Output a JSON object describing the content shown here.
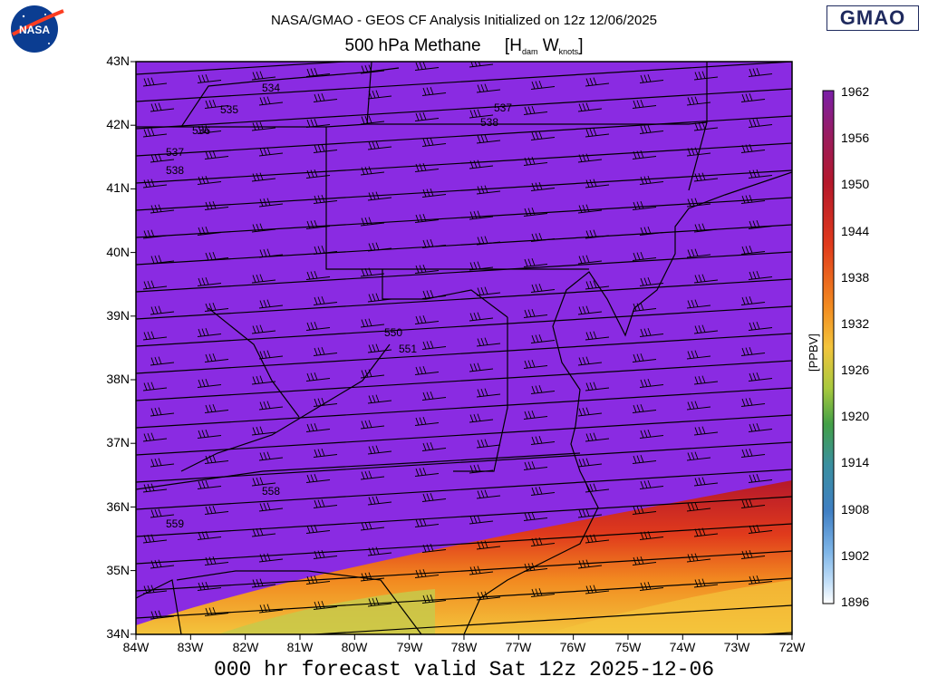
{
  "header": {
    "title_line1": "NASA/GMAO - GEOS CF Analysis Initialized on 12z 12/06/2025",
    "title_line2_main": "500 hPa Methane     [H",
    "title_sub_h": "dam",
    "title_mid": " W",
    "title_sub_w": "knots",
    "title_end": "]"
  },
  "logos": {
    "left": "NASA",
    "right": "GMAO"
  },
  "footer": {
    "valid_text": "000 hr forecast valid Sat 12z 2025-12-06"
  },
  "map": {
    "lat_labels": [
      "43N",
      "42N",
      "41N",
      "40N",
      "39N",
      "38N",
      "37N",
      "36N",
      "35N",
      "34N"
    ],
    "lon_labels": [
      "84W",
      "83W",
      "82W",
      "81W",
      "80W",
      "79W",
      "78W",
      "77W",
      "76W",
      "75W",
      "74W",
      "73W",
      "72W"
    ],
    "contour_labels": [
      "534",
      "535",
      "536",
      "537",
      "538",
      "537",
      "538",
      "550",
      "551",
      "558",
      "559"
    ],
    "fill_color": "#8a2be2"
  },
  "colorbar": {
    "unit": "[PPBV]",
    "labels": [
      "1962",
      "1956",
      "1950",
      "1944",
      "1938",
      "1932",
      "1926",
      "1920",
      "1914",
      "1908",
      "1902",
      "1896"
    ],
    "colors": [
      "#7a1fa8",
      "#b5182b",
      "#e03a1c",
      "#f28a20",
      "#f3c43c",
      "#a8c93e",
      "#43a047",
      "#3a8fa0",
      "#3f7fc4",
      "#7fb6e8",
      "#c5e0f8",
      "#ffffff"
    ]
  }
}
